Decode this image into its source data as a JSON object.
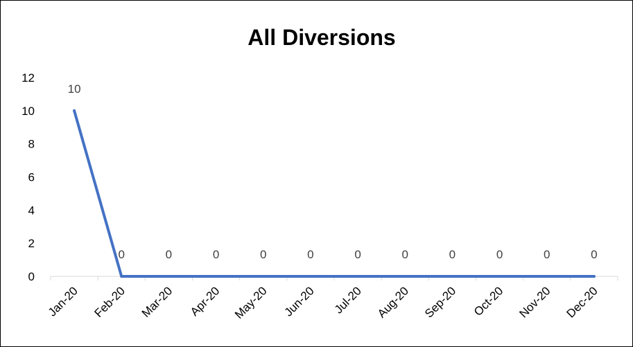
{
  "chart_data": {
    "type": "line",
    "title": "All Diversions",
    "xlabel": "",
    "ylabel": "",
    "categories": [
      "Jan-20",
      "Feb-20",
      "Mar-20",
      "Apr-20",
      "May-20",
      "Jun-20",
      "Jul-20",
      "Aug-20",
      "Sep-20",
      "Oct-20",
      "Nov-20",
      "Dec-20"
    ],
    "series": [
      {
        "values": [
          10,
          0,
          0,
          0,
          0,
          0,
          0,
          0,
          0,
          0,
          0,
          0
        ],
        "color": "#4472C4"
      }
    ],
    "ylim": [
      0,
      12
    ],
    "yticks": [
      0,
      2,
      4,
      6,
      8,
      10,
      12
    ],
    "grid": false,
    "legend": "none",
    "data_labels": true
  }
}
